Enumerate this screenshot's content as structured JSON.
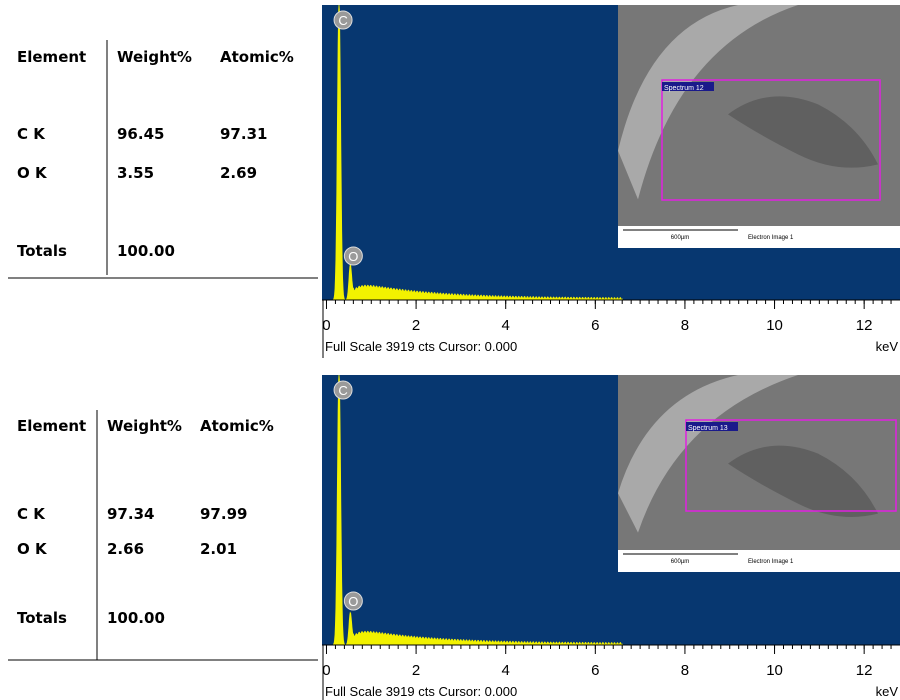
{
  "panels": [
    {
      "table": {
        "header": [
          "Element",
          "Weight%",
          "Atomic%"
        ],
        "rows": [
          [
            "C K",
            "96.45",
            "97.31"
          ],
          [
            "O K",
            "3.55",
            "2.69"
          ]
        ],
        "totals": [
          "Totals",
          "100.00"
        ]
      },
      "spectrum": {
        "peaks": [
          "C",
          "O"
        ],
        "xlim": [
          -0.1,
          12.8
        ],
        "xticks": [
          0,
          2,
          4,
          6,
          8,
          10,
          12
        ],
        "footer": "Full Scale 3919 cts Cursor: 0.000",
        "unit": "keV"
      },
      "image": {
        "spectrum_label": "Spectrum 12",
        "scale": "600µm",
        "caption": "Electron Image 1"
      }
    },
    {
      "table": {
        "header": [
          "Element",
          "Weight%",
          "Atomic%"
        ],
        "rows": [
          [
            "C K",
            "97.34",
            "97.99"
          ],
          [
            "O K",
            "2.66",
            "2.01"
          ]
        ],
        "totals": [
          "Totals",
          "100.00"
        ]
      },
      "spectrum": {
        "peaks": [
          "C",
          "O"
        ],
        "xlim": [
          -0.1,
          12.8
        ],
        "xticks": [
          0,
          2,
          4,
          6,
          8,
          10,
          12
        ],
        "footer": "Full Scale 3919 cts Cursor: 0.000",
        "unit": "keV"
      },
      "image": {
        "spectrum_label": "Spectrum 13",
        "scale": "600µm",
        "caption": "Electron Image 1"
      }
    }
  ]
}
